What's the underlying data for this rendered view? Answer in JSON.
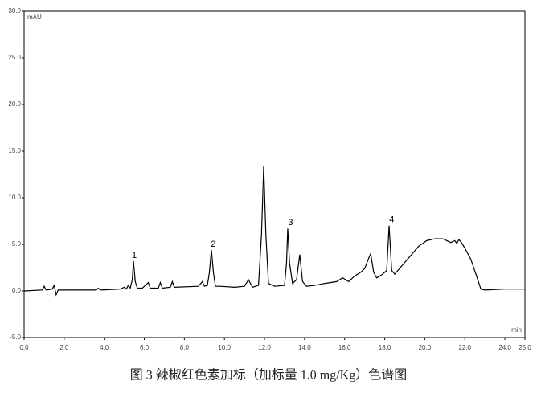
{
  "chart_data": {
    "type": "line",
    "caption": "图 3 辣椒红色素加标（加标量 1.0 mg/Kg）色谱图",
    "ylabel": "mAU",
    "xlabel": "min",
    "xlim": [
      0,
      25
    ],
    "ylim": [
      -5,
      30
    ],
    "xticks": [
      {
        "value": 0,
        "label": "0.0"
      },
      {
        "value": 2,
        "label": "2.0"
      },
      {
        "value": 4,
        "label": "4.0"
      },
      {
        "value": 6,
        "label": "6.0"
      },
      {
        "value": 8,
        "label": "8.0"
      },
      {
        "value": 10,
        "label": "10.0"
      },
      {
        "value": 12,
        "label": "12.0"
      },
      {
        "value": 14,
        "label": "14.0"
      },
      {
        "value": 16,
        "label": "16.0"
      },
      {
        "value": 18,
        "label": "18.0"
      },
      {
        "value": 20,
        "label": "20.0"
      },
      {
        "value": 22,
        "label": "22.0"
      },
      {
        "value": 24,
        "label": "24.0"
      },
      {
        "value": 25,
        "label": "25.0"
      }
    ],
    "yticks": [
      {
        "value": -5,
        "label": "-5.0"
      },
      {
        "value": 0,
        "label": "0.0"
      },
      {
        "value": 5,
        "label": "5.0"
      },
      {
        "value": 10,
        "label": "10.0"
      },
      {
        "value": 15,
        "label": "15.0"
      },
      {
        "value": 20,
        "label": "20.0"
      },
      {
        "value": 25,
        "label": "25.0"
      },
      {
        "value": 30,
        "label": "30.0"
      }
    ],
    "series": [
      {
        "color": "#000000",
        "x": [
          0,
          0.9,
          1.0,
          1.1,
          1.4,
          1.5,
          1.6,
          1.7,
          2.5,
          3.6,
          3.7,
          3.8,
          4.8,
          5.0,
          5.1,
          5.2,
          5.3,
          5.4,
          5.46,
          5.55,
          5.65,
          5.9,
          6.2,
          6.3,
          6.7,
          6.8,
          6.9,
          7.3,
          7.4,
          7.5,
          8.7,
          8.9,
          9.0,
          9.15,
          9.25,
          9.35,
          9.45,
          9.55,
          9.8,
          10.5,
          11.0,
          11.2,
          11.4,
          11.7,
          11.85,
          11.96,
          12.07,
          12.2,
          12.5,
          13.0,
          13.1,
          13.16,
          13.25,
          13.4,
          13.6,
          13.76,
          13.9,
          14.1,
          14.5,
          15.0,
          15.6,
          15.9,
          16.2,
          16.5,
          16.8,
          17.0,
          17.2,
          17.3,
          17.45,
          17.6,
          17.9,
          18.1,
          18.22,
          18.35,
          18.5,
          18.9,
          19.3,
          19.7,
          20.1,
          20.5,
          20.9,
          21.3,
          21.5,
          21.6,
          21.7,
          21.8,
          22.0,
          22.3,
          22.6,
          22.8,
          23.0,
          24.0,
          25.0
        ],
        "values": [
          0.0,
          0.1,
          0.5,
          0.1,
          0.2,
          0.6,
          -0.4,
          0.1,
          0.1,
          0.1,
          0.3,
          0.1,
          0.2,
          0.4,
          0.2,
          0.6,
          0.3,
          1.2,
          3.2,
          1.0,
          0.3,
          0.3,
          0.9,
          0.3,
          0.3,
          0.9,
          0.3,
          0.4,
          1.0,
          0.4,
          0.5,
          1.0,
          0.5,
          0.6,
          2.0,
          4.4,
          2.0,
          0.5,
          0.5,
          0.4,
          0.5,
          1.2,
          0.4,
          0.6,
          6.0,
          13.4,
          6.0,
          0.8,
          0.5,
          0.6,
          3.0,
          6.7,
          3.0,
          0.8,
          1.2,
          3.9,
          1.0,
          0.5,
          0.6,
          0.8,
          1.0,
          1.4,
          1.0,
          1.6,
          2.0,
          2.4,
          3.5,
          4.0,
          2.0,
          1.4,
          1.8,
          2.2,
          7.0,
          2.2,
          1.8,
          2.8,
          3.8,
          4.8,
          5.4,
          5.6,
          5.6,
          5.2,
          5.4,
          5.1,
          5.5,
          5.3,
          4.6,
          3.4,
          1.5,
          0.2,
          0.1,
          0.2,
          0.2
        ]
      }
    ],
    "annotations": [
      {
        "text": "1",
        "x": 5.5,
        "y": 3.8
      },
      {
        "text": "2",
        "x": 9.45,
        "y": 5.0
      },
      {
        "text": "3",
        "x": 13.3,
        "y": 7.3
      },
      {
        "text": "4",
        "x": 18.35,
        "y": 7.6
      }
    ]
  }
}
